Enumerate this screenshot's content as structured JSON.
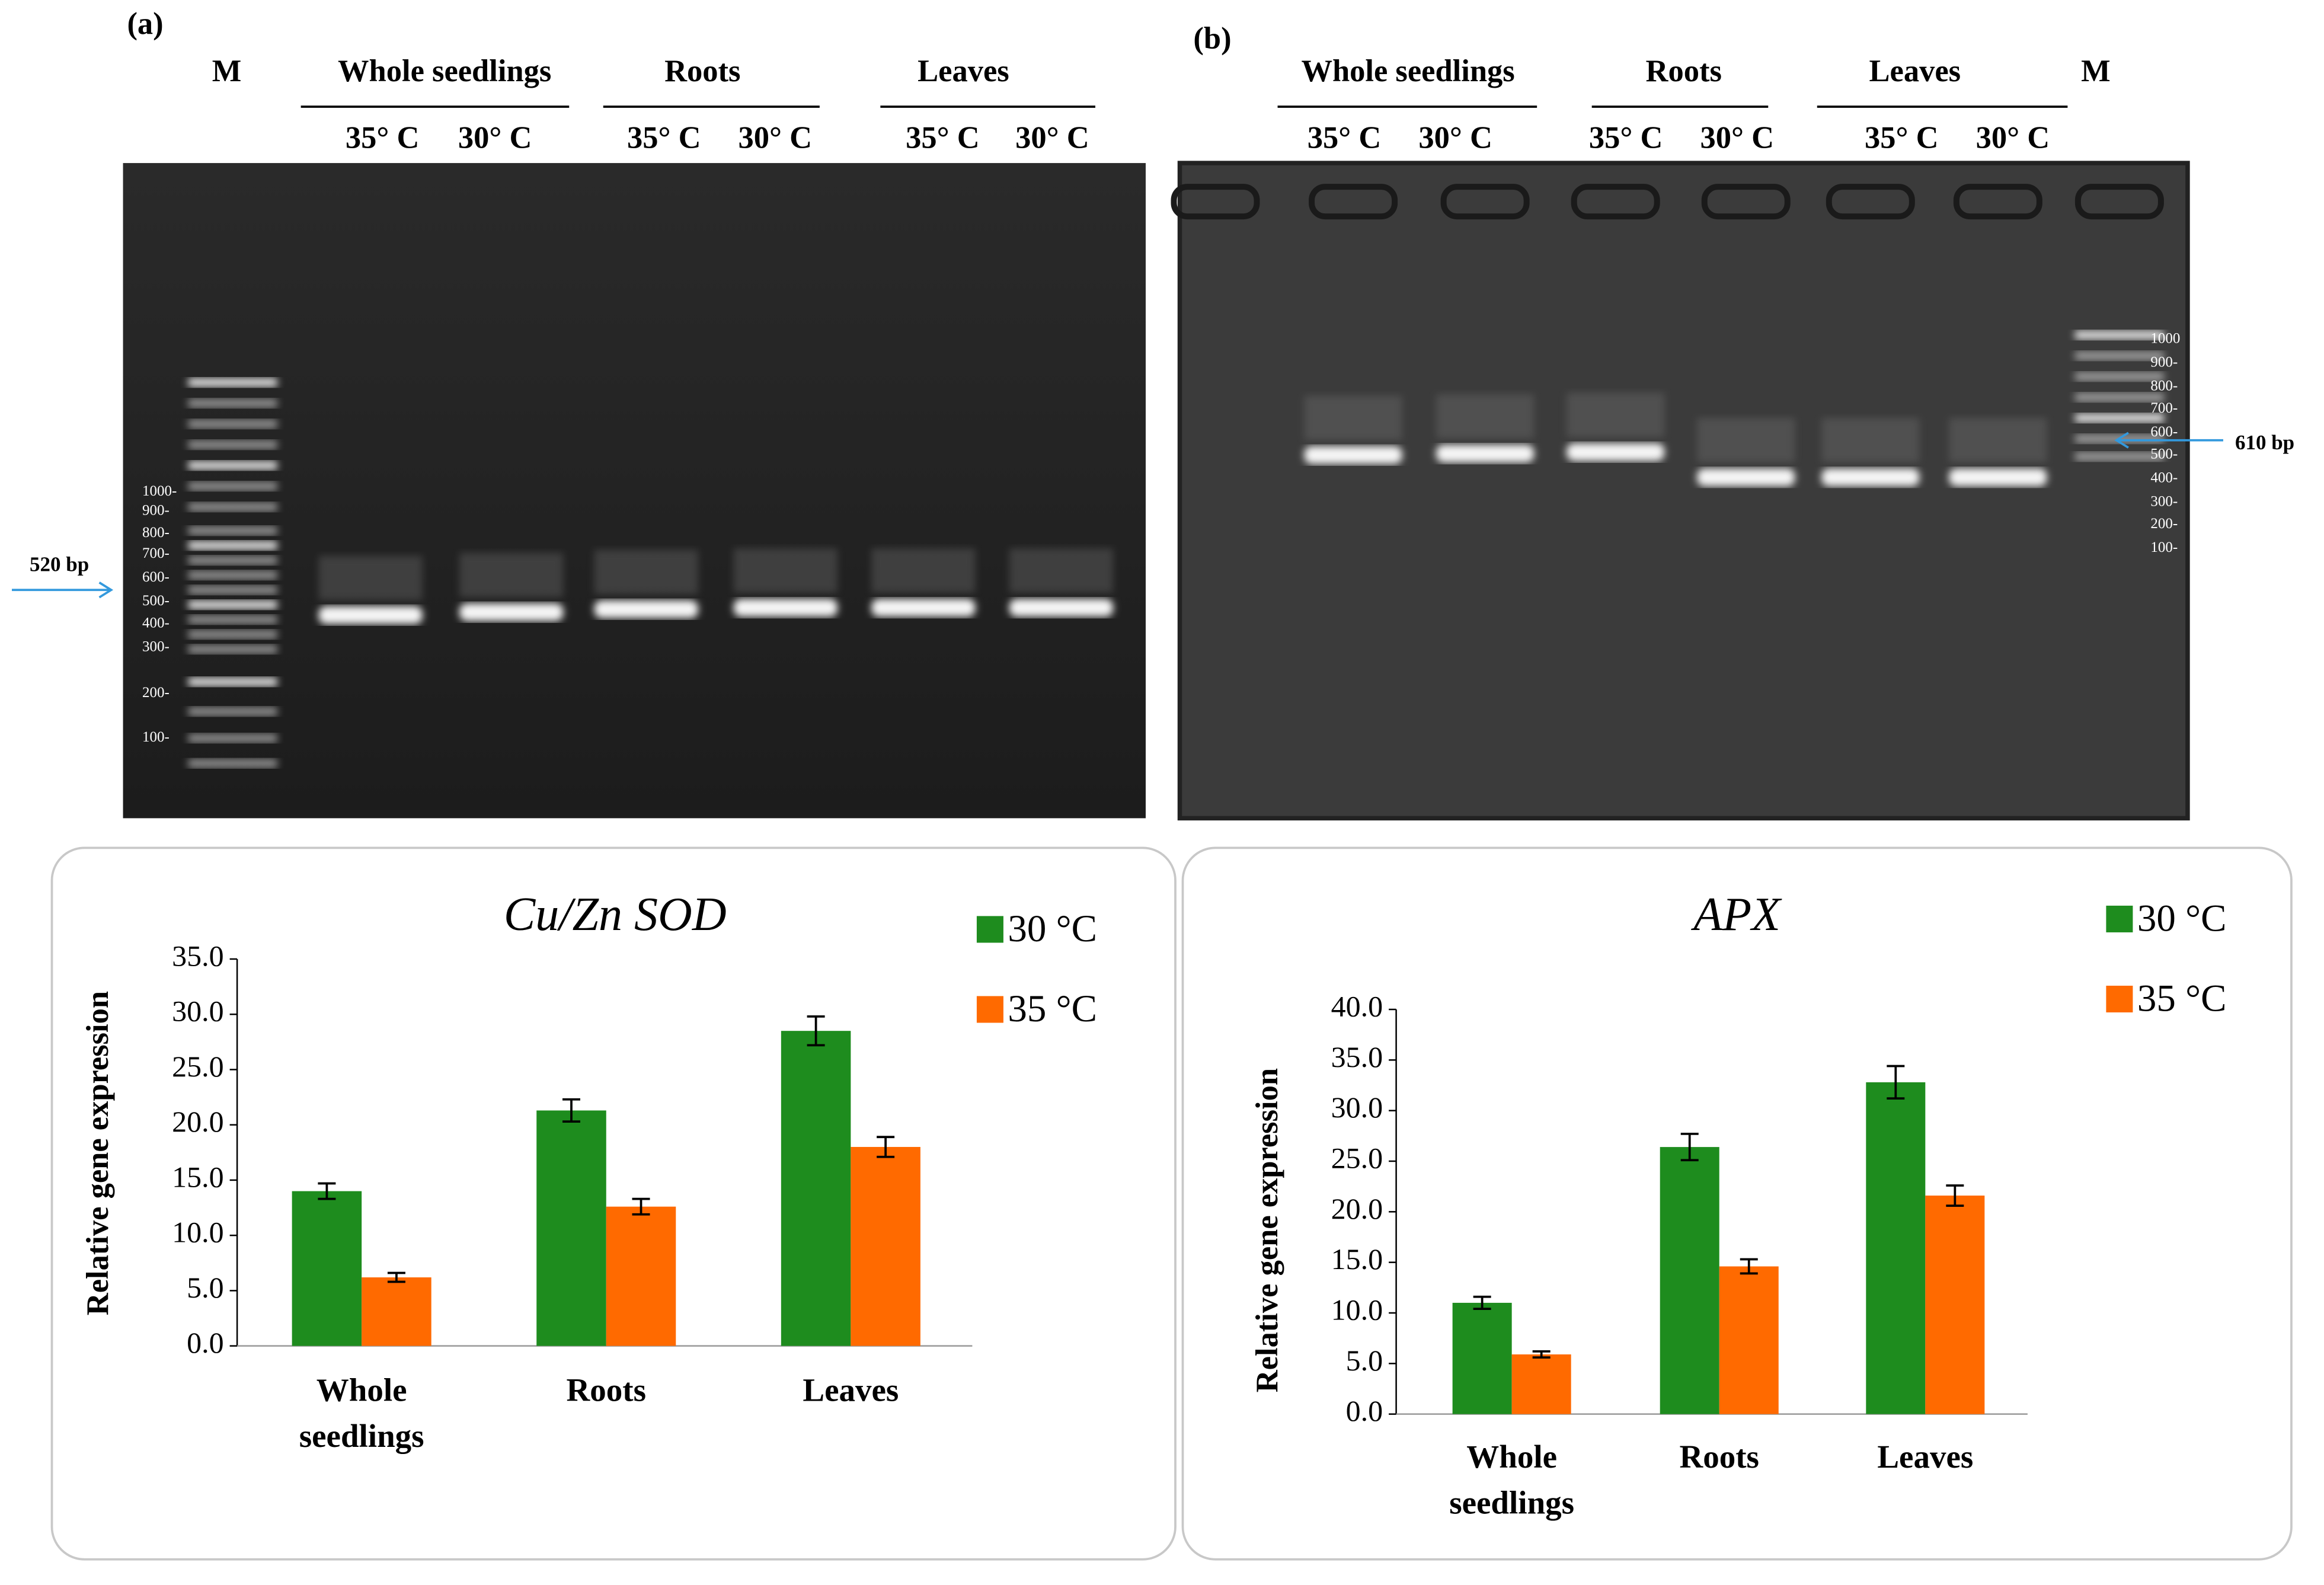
{
  "gels": [
    {
      "label": "(a)",
      "marker": "M",
      "groups": [
        "Whole seedlings",
        "Roots",
        "Leaves"
      ],
      "lanes": [
        "35° C",
        "30° C",
        "35° C",
        "30° C",
        "35° C",
        "30° C"
      ],
      "ladder": [
        "1000-",
        "900-",
        "800-",
        "700-",
        "600-",
        "500-",
        "400-",
        "300-",
        "200-",
        "100-"
      ],
      "size_label": "520 bp"
    },
    {
      "label": "(b)",
      "marker": "M",
      "groups": [
        "Whole seedlings",
        "Roots",
        "Leaves"
      ],
      "lanes": [
        "35° C",
        "30° C",
        "35° C",
        "30° C",
        "35° C",
        "30° C"
      ],
      "ladder": [
        "1000",
        "900-",
        "800-",
        "700-",
        "600-",
        "500-",
        "400-",
        "300-",
        "200-",
        "100-"
      ],
      "size_label": "610 bp"
    }
  ],
  "chart_data": [
    {
      "type": "bar",
      "title": "Cu/Zn SOD",
      "y_label": "Relative gene expression",
      "categories": [
        "Whole seedlings",
        "Roots",
        "Leaves"
      ],
      "series": [
        {
          "name": "30 °C",
          "color": "#1e8c1e",
          "values": [
            14.0,
            21.3,
            28.5
          ],
          "errors": [
            0.7,
            1.0,
            1.3
          ]
        },
        {
          "name": "35 °C",
          "color": "#ff6a00",
          "values": [
            6.2,
            12.6,
            18.0
          ],
          "errors": [
            0.4,
            0.7,
            0.9
          ]
        }
      ],
      "ylim": [
        0,
        35
      ],
      "yticks": [
        {
          "value": 0,
          "label": "0.0"
        },
        {
          "value": 5,
          "label": "5.0"
        },
        {
          "value": 10,
          "label": "10.0"
        },
        {
          "value": 15,
          "label": "15.0"
        },
        {
          "value": 20,
          "label": "20.0"
        },
        {
          "value": 25,
          "label": "25.0"
        },
        {
          "value": 30,
          "label": "30.0"
        },
        {
          "value": 35,
          "label": "35.0"
        }
      ],
      "grid": false,
      "legend": "upper right"
    },
    {
      "type": "bar",
      "title": "APX",
      "y_label": "Relative gene expression",
      "categories": [
        "Whole seedlings",
        "Roots",
        "Leaves"
      ],
      "series": [
        {
          "name": "30 °C",
          "color": "#1e8c1e",
          "values": [
            11.0,
            26.4,
            32.8
          ],
          "errors": [
            0.6,
            1.3,
            1.6
          ]
        },
        {
          "name": "35 °C",
          "color": "#ff6a00",
          "values": [
            5.9,
            14.6,
            21.6
          ],
          "errors": [
            0.3,
            0.7,
            1.0
          ]
        }
      ],
      "ylim": [
        0,
        40
      ],
      "yticks": [
        {
          "value": 0,
          "label": "0.0"
        },
        {
          "value": 5,
          "label": "5.0"
        },
        {
          "value": 10,
          "label": "10.0"
        },
        {
          "value": 15,
          "label": "15.0"
        },
        {
          "value": 20,
          "label": "20.0"
        },
        {
          "value": 25,
          "label": "25.0"
        },
        {
          "value": 30,
          "label": "30.0"
        },
        {
          "value": 35,
          "label": "35.0"
        },
        {
          "value": 40,
          "label": "40.0"
        }
      ],
      "grid": false,
      "legend": "upper right"
    }
  ]
}
